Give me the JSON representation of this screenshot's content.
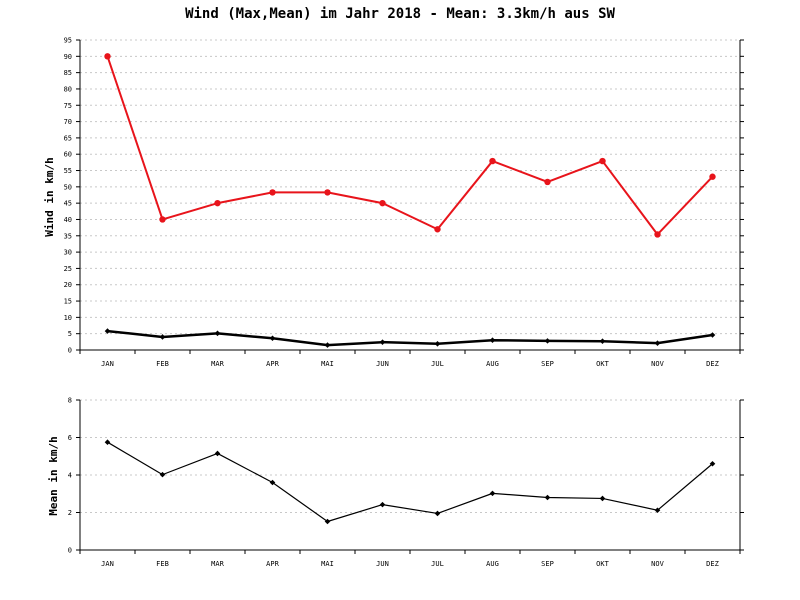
{
  "chart_title": "Wind (Max,Mean) im Jahr 2018 - Mean: 3.3km/h aus SW",
  "chart_data": [
    {
      "type": "line",
      "ylabel": "Wind in km/h",
      "xlabel": "",
      "categories": [
        "JAN",
        "FEB",
        "MAR",
        "APR",
        "MAI",
        "JUN",
        "JUL",
        "AUG",
        "SEP",
        "OKT",
        "NOV",
        "DEZ"
      ],
      "ylim": [
        0,
        95
      ],
      "yticks": [
        0,
        5,
        10,
        15,
        20,
        25,
        30,
        35,
        40,
        45,
        50,
        55,
        60,
        65,
        70,
        75,
        80,
        85,
        90,
        95
      ],
      "grid": true,
      "series": [
        {
          "color": "#e8141b",
          "marker": "circle",
          "values": [
            90,
            40,
            45,
            48.3,
            48.3,
            45,
            37,
            57.9,
            51.5,
            57.9,
            35.4,
            53.1
          ]
        },
        {
          "color": "#000000",
          "marker": "diamond",
          "values": [
            5.8,
            4.0,
            5.1,
            3.6,
            1.5,
            2.4,
            1.9,
            3.0,
            2.8,
            2.7,
            2.1,
            4.6
          ]
        }
      ]
    },
    {
      "type": "line",
      "ylabel": "Mean in km/h",
      "xlabel": "",
      "categories": [
        "JAN",
        "FEB",
        "MAR",
        "APR",
        "MAI",
        "JUN",
        "JUL",
        "AUG",
        "SEP",
        "OKT",
        "NOV",
        "DEZ"
      ],
      "ylim": [
        0,
        8
      ],
      "yticks": [
        0,
        2,
        4,
        6,
        8
      ],
      "grid": true,
      "series": [
        {
          "color": "#000000",
          "marker": "diamond",
          "values": [
            5.75,
            4.02,
            5.15,
            3.6,
            1.52,
            2.42,
            1.95,
            3.02,
            2.8,
            2.75,
            2.12,
            4.6
          ]
        }
      ]
    }
  ]
}
